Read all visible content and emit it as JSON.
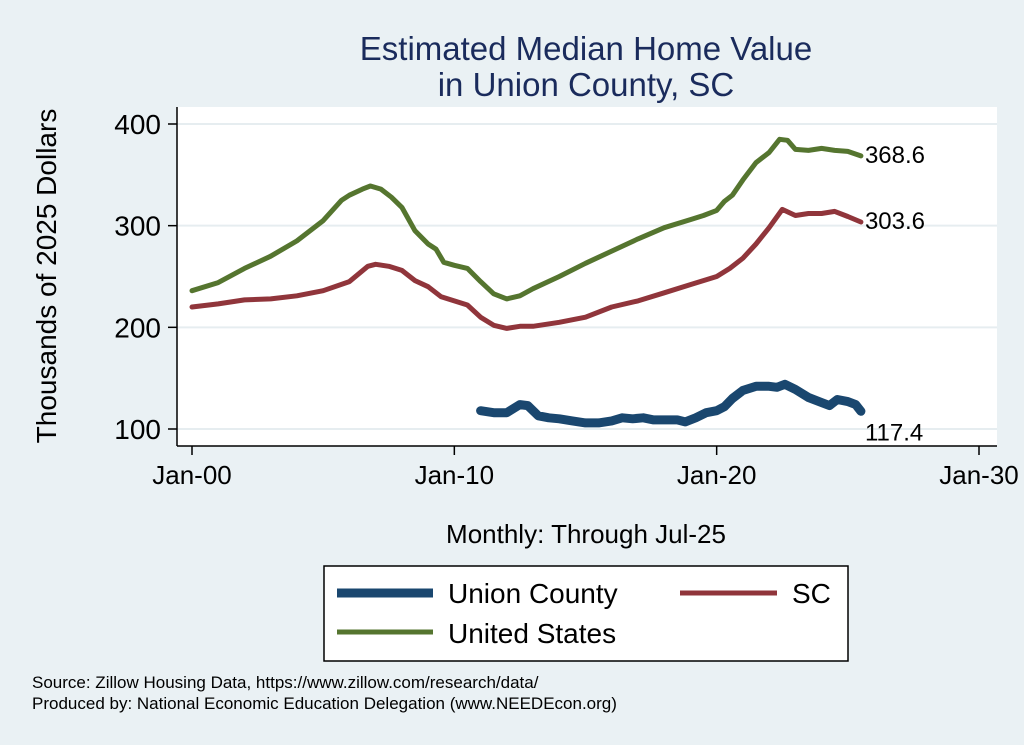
{
  "chart_data": {
    "type": "line",
    "title": [
      "Estimated Median Home Value",
      "in Union County, SC"
    ],
    "xlabel": "Monthly: Through Jul-25",
    "ylabel": "Thousands of 2025 Dollars",
    "x_ticks": [
      {
        "year": 2000,
        "label": "Jan-00"
      },
      {
        "year": 2010,
        "label": "Jan-10"
      },
      {
        "year": 2020,
        "label": "Jan-20"
      },
      {
        "year": 2030,
        "label": "Jan-30"
      }
    ],
    "xlim": [
      2000,
      2030
    ],
    "y_ticks": [
      100,
      200,
      300,
      400
    ],
    "ylim": [
      100,
      400
    ],
    "grid": true,
    "legend_position": "bottom",
    "series": [
      {
        "name": "Union County",
        "color": "#1a476f",
        "end_label": "117.4",
        "points": [
          [
            2011.0,
            118
          ],
          [
            2011.5,
            116
          ],
          [
            2012.0,
            116
          ],
          [
            2012.5,
            124
          ],
          [
            2012.8,
            123
          ],
          [
            2013.2,
            113
          ],
          [
            2013.6,
            111
          ],
          [
            2014.0,
            110
          ],
          [
            2014.5,
            108
          ],
          [
            2015.0,
            106
          ],
          [
            2015.5,
            106
          ],
          [
            2016.0,
            108
          ],
          [
            2016.4,
            111
          ],
          [
            2016.8,
            110
          ],
          [
            2017.2,
            111
          ],
          [
            2017.6,
            109
          ],
          [
            2018.0,
            109
          ],
          [
            2018.5,
            109
          ],
          [
            2018.8,
            107
          ],
          [
            2019.2,
            111
          ],
          [
            2019.6,
            116
          ],
          [
            2020.0,
            118
          ],
          [
            2020.3,
            122
          ],
          [
            2020.6,
            130
          ],
          [
            2021.0,
            138
          ],
          [
            2021.5,
            142
          ],
          [
            2022.0,
            142
          ],
          [
            2022.3,
            141
          ],
          [
            2022.6,
            144
          ],
          [
            2023.0,
            139
          ],
          [
            2023.5,
            131
          ],
          [
            2024.0,
            126
          ],
          [
            2024.3,
            123
          ],
          [
            2024.6,
            129
          ],
          [
            2025.0,
            127
          ],
          [
            2025.3,
            124
          ],
          [
            2025.5,
            117.4
          ]
        ]
      },
      {
        "name": "SC",
        "color": "#90353b",
        "end_label": "303.6",
        "points": [
          [
            2000.0,
            220
          ],
          [
            2001.0,
            223
          ],
          [
            2002.0,
            227
          ],
          [
            2003.0,
            228
          ],
          [
            2004.0,
            231
          ],
          [
            2005.0,
            236
          ],
          [
            2006.0,
            245
          ],
          [
            2006.7,
            260
          ],
          [
            2007.0,
            262
          ],
          [
            2007.5,
            260
          ],
          [
            2008.0,
            256
          ],
          [
            2008.5,
            246
          ],
          [
            2009.0,
            240
          ],
          [
            2009.5,
            230
          ],
          [
            2010.0,
            226
          ],
          [
            2010.5,
            222
          ],
          [
            2011.0,
            210
          ],
          [
            2011.5,
            202
          ],
          [
            2012.0,
            199
          ],
          [
            2012.5,
            201
          ],
          [
            2013.0,
            201
          ],
          [
            2013.5,
            203
          ],
          [
            2014.0,
            205
          ],
          [
            2015.0,
            210
          ],
          [
            2016.0,
            220
          ],
          [
            2017.0,
            226
          ],
          [
            2018.0,
            234
          ],
          [
            2019.0,
            242
          ],
          [
            2020.0,
            250
          ],
          [
            2020.5,
            258
          ],
          [
            2021.0,
            268
          ],
          [
            2021.5,
            282
          ],
          [
            2022.0,
            298
          ],
          [
            2022.5,
            316
          ],
          [
            2023.0,
            310
          ],
          [
            2023.5,
            312
          ],
          [
            2024.0,
            312
          ],
          [
            2024.5,
            314
          ],
          [
            2025.0,
            309
          ],
          [
            2025.5,
            303.6
          ]
        ]
      },
      {
        "name": "United States",
        "color": "#55752f",
        "end_label": "368.6",
        "points": [
          [
            2000.0,
            236
          ],
          [
            2001.0,
            244
          ],
          [
            2002.0,
            258
          ],
          [
            2003.0,
            270
          ],
          [
            2004.0,
            285
          ],
          [
            2005.0,
            305
          ],
          [
            2005.7,
            325
          ],
          [
            2006.0,
            330
          ],
          [
            2006.5,
            336
          ],
          [
            2006.8,
            339
          ],
          [
            2007.2,
            336
          ],
          [
            2007.6,
            328
          ],
          [
            2008.0,
            318
          ],
          [
            2008.5,
            295
          ],
          [
            2009.0,
            282
          ],
          [
            2009.3,
            277
          ],
          [
            2009.6,
            264
          ],
          [
            2010.0,
            261
          ],
          [
            2010.5,
            258
          ],
          [
            2011.0,
            245
          ],
          [
            2011.5,
            233
          ],
          [
            2012.0,
            228
          ],
          [
            2012.5,
            231
          ],
          [
            2013.0,
            238
          ],
          [
            2014.0,
            250
          ],
          [
            2015.0,
            263
          ],
          [
            2016.0,
            275
          ],
          [
            2017.0,
            287
          ],
          [
            2018.0,
            298
          ],
          [
            2019.0,
            306
          ],
          [
            2019.5,
            310
          ],
          [
            2020.0,
            315
          ],
          [
            2020.3,
            324
          ],
          [
            2020.6,
            330
          ],
          [
            2021.0,
            345
          ],
          [
            2021.5,
            362
          ],
          [
            2022.0,
            372
          ],
          [
            2022.4,
            385
          ],
          [
            2022.7,
            384
          ],
          [
            2023.0,
            375
          ],
          [
            2023.5,
            374
          ],
          [
            2024.0,
            376
          ],
          [
            2024.5,
            374
          ],
          [
            2025.0,
            373
          ],
          [
            2025.5,
            368.6
          ]
        ]
      }
    ]
  },
  "footer": {
    "source": "Source: Zillow Housing Data, https://www.zillow.com/research/data/",
    "producer": "Produced by: National Economic Education Delegation (www.NEEDEcon.org)"
  }
}
